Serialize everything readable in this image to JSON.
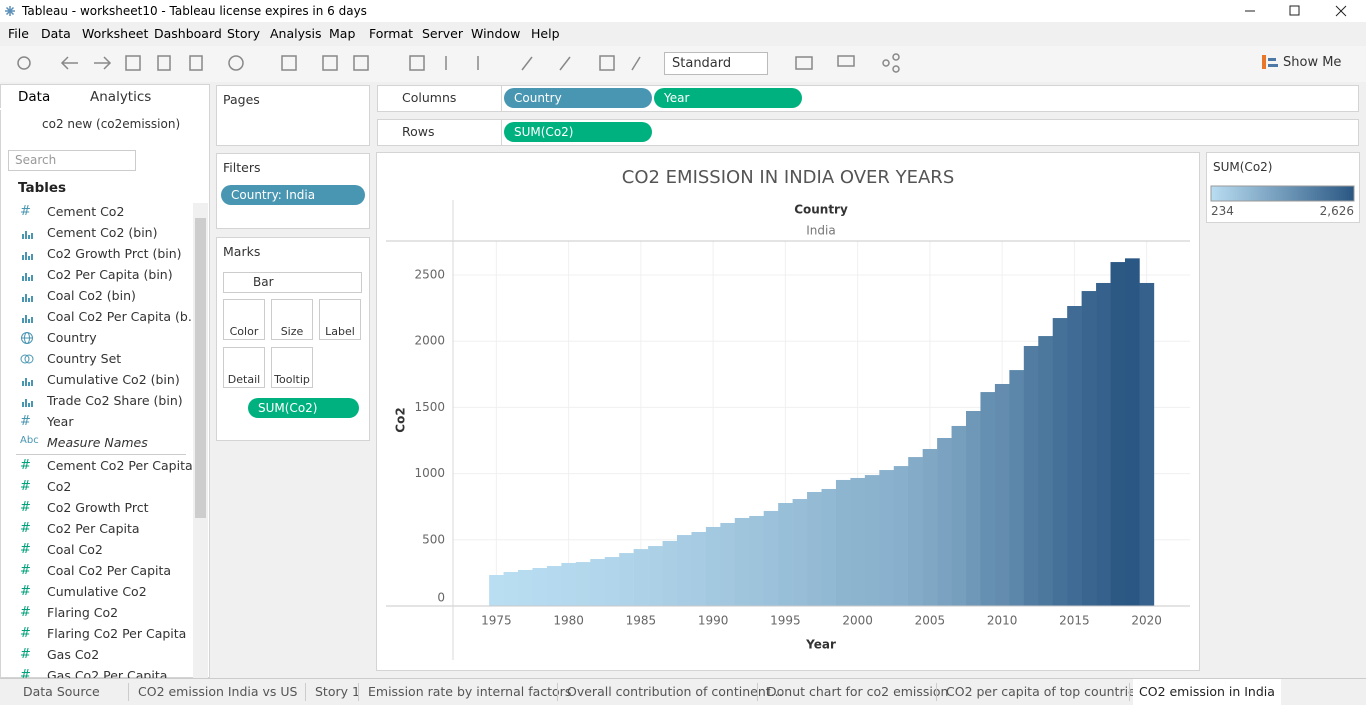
{
  "window": {
    "title": "Tableau - worksheet10 - Tableau license expires in 6 days"
  },
  "menu": [
    "File",
    "Data",
    "Worksheet",
    "Dashboard",
    "Story",
    "Analysis",
    "Map",
    "Format",
    "Server",
    "Window",
    "Help"
  ],
  "toolbar": {
    "fit": "Standard",
    "show_me": "Show Me"
  },
  "data_pane": {
    "tabs": [
      "Data",
      "Analytics"
    ],
    "source": "co2 new (co2emission)",
    "search": "Search",
    "section": "Tables",
    "dimensions": [
      {
        "icon": "#",
        "name": "Cement Co2"
      },
      {
        "kind": "bin",
        "name": "Cement Co2 (bin)"
      },
      {
        "kind": "bin",
        "name": "Co2 Growth Prct (bin)"
      },
      {
        "kind": "bin",
        "name": "Co2 Per Capita (bin)"
      },
      {
        "kind": "bin",
        "name": "Coal Co2 (bin)"
      },
      {
        "kind": "bin",
        "name": "Coal Co2 Per Capita (b..."
      },
      {
        "kind": "geo",
        "name": "Country"
      },
      {
        "kind": "set",
        "name": "Country Set"
      },
      {
        "kind": "bin",
        "name": "Cumulative Co2 (bin)"
      },
      {
        "kind": "bin",
        "name": "Trade Co2 Share (bin)"
      },
      {
        "icon": "#",
        "name": "Year"
      },
      {
        "icon": "Abc",
        "name": "Measure Names"
      }
    ],
    "measures": [
      {
        "icon": "#",
        "name": "Cement Co2 Per Capita"
      },
      {
        "icon": "#",
        "name": "Co2"
      },
      {
        "icon": "#",
        "name": "Co2 Growth Prct"
      },
      {
        "icon": "#",
        "name": "Co2 Per Capita"
      },
      {
        "icon": "#",
        "name": "Coal Co2"
      },
      {
        "icon": "#",
        "name": "Coal Co2 Per Capita"
      },
      {
        "icon": "#",
        "name": "Cumulative Co2"
      },
      {
        "icon": "#",
        "name": "Flaring Co2"
      },
      {
        "icon": "#",
        "name": "Flaring Co2 Per Capita"
      },
      {
        "icon": "#",
        "name": "Gas Co2"
      },
      {
        "icon": "#",
        "name": "Gas Co2 Per Capita"
      }
    ]
  },
  "shelves": {
    "pages": "Pages",
    "filters": "Filters",
    "filter_pills": [
      "Country: India"
    ],
    "marks": "Marks",
    "mark_type": "Bar",
    "mark_buttons": [
      "Color",
      "Size",
      "Label",
      "Detail",
      "Tooltip"
    ],
    "mark_pills": [
      "SUM(Co2)"
    ],
    "columns": "Columns",
    "column_pills": [
      "Country",
      "Year"
    ],
    "rows": "Rows",
    "row_pills": [
      "SUM(Co2)"
    ]
  },
  "chart_data": {
    "type": "bar",
    "title": "CO2 EMISSION IN INDIA OVER YEARS",
    "header_title": "Country",
    "header_value": "India",
    "x_label": "Year",
    "y_label": "Co2",
    "x": [
      1975,
      1976,
      1977,
      1978,
      1979,
      1980,
      1981,
      1982,
      1983,
      1984,
      1985,
      1986,
      1987,
      1988,
      1989,
      1990,
      1991,
      1992,
      1993,
      1994,
      1995,
      1996,
      1997,
      1998,
      1999,
      2000,
      2001,
      2002,
      2003,
      2004,
      2005,
      2006,
      2007,
      2008,
      2009,
      2010,
      2011,
      2012,
      2013,
      2014,
      2015,
      2016,
      2017,
      2018,
      2019,
      2020
    ],
    "values": [
      234,
      257,
      272,
      287,
      302,
      325,
      332,
      355,
      370,
      400,
      430,
      453,
      491,
      536,
      559,
      597,
      627,
      665,
      680,
      718,
      778,
      808,
      861,
      884,
      952,
      967,
      989,
      1027,
      1057,
      1125,
      1186,
      1269,
      1360,
      1473,
      1616,
      1677,
      1782,
      1964,
      2039,
      2175,
      2266,
      2379,
      2440,
      2598,
      2626,
      2440
    ],
    "xlim": [
      1972,
      2023
    ],
    "xticks": [
      1975,
      1980,
      1985,
      1990,
      1995,
      2000,
      2005,
      2010,
      2015,
      2020
    ],
    "ylim": [
      0,
      2757
    ],
    "yticks": [
      0,
      500,
      1000,
      1500,
      2000,
      2500
    ],
    "grid": true,
    "legend": {
      "title": "SUM(Co2)",
      "ticks": [
        {
          "value": 234,
          "label": "234"
        },
        {
          "value": 2626,
          "label": "2,626"
        }
      ],
      "colors": [
        "#b9ddf1",
        "#2a5783"
      ]
    }
  },
  "sheets": [
    "Data Source",
    "CO2 emission India vs US",
    "Story 1",
    "Emission rate by internal factors",
    "Overall contribution of continent...",
    "Donut chart for co2 emission",
    "CO2 per capita of top countries",
    "CO2 emission in India"
  ]
}
